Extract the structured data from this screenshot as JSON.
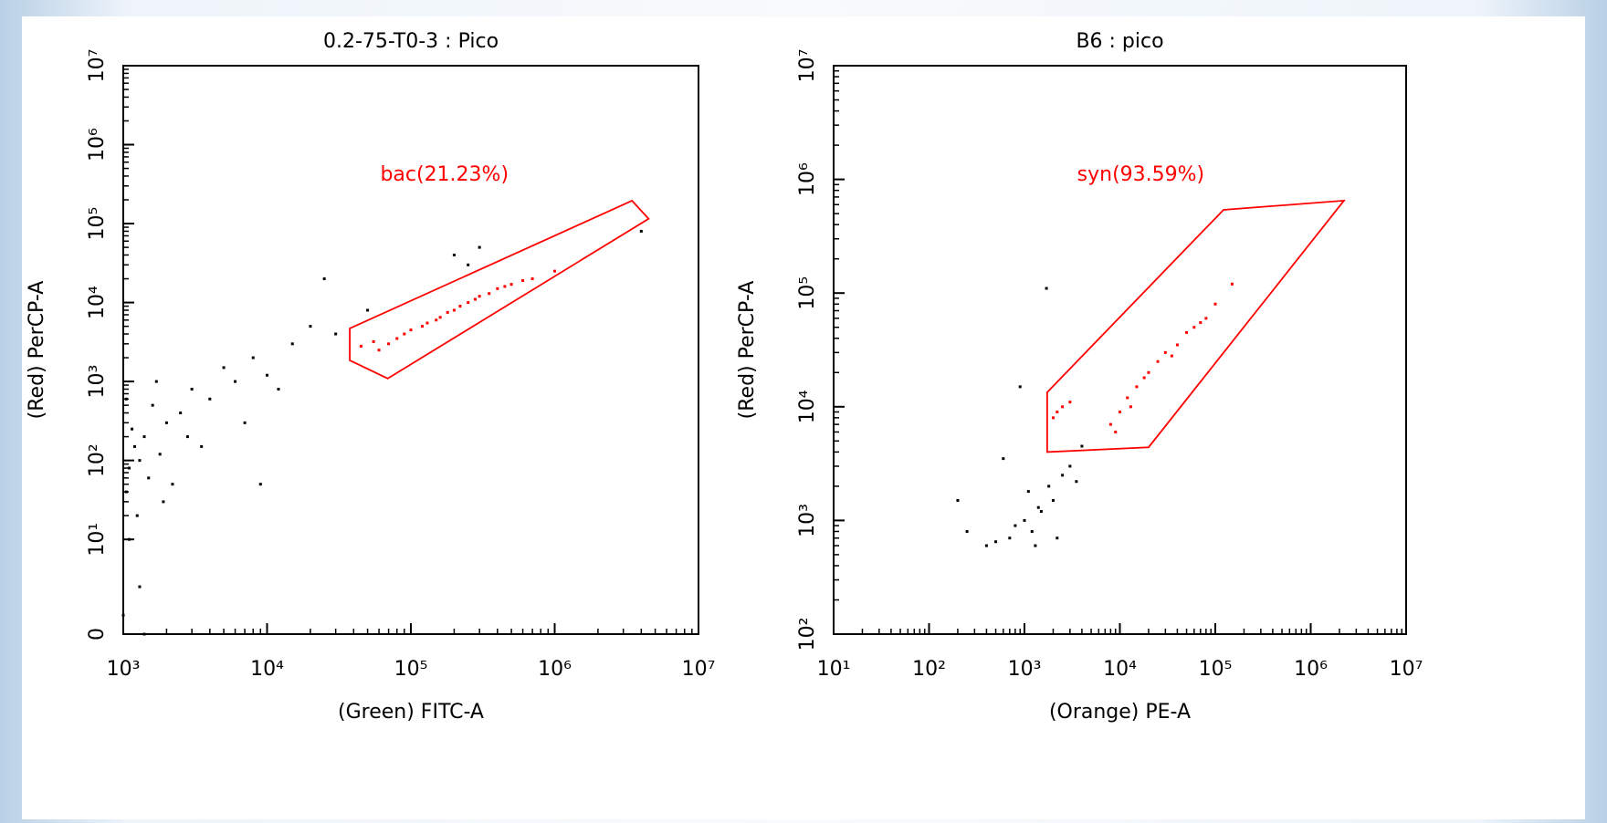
{
  "chart_data": [
    {
      "type": "scatter",
      "title": "0.2-75-T0-3 : Pico",
      "x_label": "(Green)  FITC-A",
      "y_label": "(Red)  PerCP-A",
      "xscale": "log",
      "yscale": "logicle",
      "xlim": [
        1000,
        10000000
      ],
      "ylim": [
        0,
        10000000
      ],
      "xticks": [
        {
          "value": 1000,
          "label": "10³"
        },
        {
          "value": 10000,
          "label": "10⁴"
        },
        {
          "value": 100000,
          "label": "10⁵"
        },
        {
          "value": 1000000,
          "label": "10⁶"
        },
        {
          "value": 10000000,
          "label": "10⁷"
        }
      ],
      "yticks": [
        0,
        {
          "value": 10,
          "label": "10¹"
        },
        {
          "value": 100,
          "label": "10²"
        },
        {
          "value": 1000,
          "label": "10³"
        },
        {
          "value": 10000,
          "label": "10⁴"
        },
        {
          "value": 100000,
          "label": "10⁵"
        },
        {
          "value": 1000000,
          "label": "10⁶"
        },
        {
          "value": 10000000,
          "label": "10⁷"
        }
      ],
      "series": [
        {
          "color": "#000000",
          "x": [
            1100,
            1200,
            1050,
            1300,
            1500,
            1150,
            1400,
            1800,
            2000,
            1250,
            1600,
            2500,
            3000,
            4000,
            5000,
            6000,
            8000,
            10000,
            15000,
            20000,
            30000,
            50000,
            2200,
            3500,
            1700,
            1100,
            1300,
            2800,
            7000,
            12000,
            250000,
            300000,
            200000,
            1000,
            1400,
            9000,
            4000000,
            25000,
            1900,
            1050
          ],
          "y": [
            80,
            150,
            40,
            100,
            60,
            250,
            200,
            120,
            300,
            20,
            500,
            400,
            800,
            600,
            1500,
            1000,
            2000,
            1200,
            3000,
            5000,
            4000,
            8000,
            50,
            150,
            1000,
            10,
            5,
            200,
            300,
            800,
            30000,
            50000,
            40000,
            2,
            0,
            50,
            80000,
            20000,
            30,
            600
          ]
        },
        {
          "color": "#ff0000",
          "x": [
            45000,
            55000,
            60000,
            80000,
            100000,
            120000,
            150000,
            180000,
            200000,
            250000,
            300000,
            350000,
            400000,
            500000,
            600000,
            700000,
            90000,
            130000,
            220000,
            280000,
            450000,
            1000000,
            70000,
            160000
          ],
          "y": [
            2800,
            3200,
            2500,
            3500,
            4500,
            5000,
            6000,
            7500,
            8000,
            10000,
            12000,
            13000,
            15000,
            17000,
            19000,
            20000,
            4000,
            5500,
            9000,
            11000,
            16000,
            25000,
            3000,
            6500
          ]
        }
      ],
      "gate": {
        "label": "bac(21.23%)",
        "color": "#ff0000",
        "x": [
          37600,
          37600,
          69000,
          4500000,
          3450000
        ],
        "y": [
          4700,
          1850,
          1090,
          115000,
          195000
        ]
      }
    },
    {
      "type": "scatter",
      "title": "B6 : pico",
      "x_label": "(Orange)  PE-A",
      "y_label": "(Red)  PerCP-A",
      "xscale": "log",
      "yscale": "log",
      "xlim": [
        10,
        10000000
      ],
      "ylim": [
        100,
        10000000
      ],
      "xticks": [
        {
          "value": 10,
          "label": "10¹"
        },
        {
          "value": 100,
          "label": "10²"
        },
        {
          "value": 1000,
          "label": "10³"
        },
        {
          "value": 10000,
          "label": "10⁴"
        },
        {
          "value": 100000,
          "label": "10⁵"
        },
        {
          "value": 1000000,
          "label": "10⁶"
        },
        {
          "value": 10000000,
          "label": "10⁷"
        }
      ],
      "yticks": [
        {
          "value": 100,
          "label": "10²"
        },
        {
          "value": 1000,
          "label": "10³"
        },
        {
          "value": 10000,
          "label": "10⁴"
        },
        {
          "value": 100000,
          "label": "10⁵"
        },
        {
          "value": 1000000,
          "label": "10⁶"
        },
        {
          "value": 10000000,
          "label": "10⁷"
        }
      ],
      "series": [
        {
          "color": "#000000",
          "x": [
            200,
            250,
            400,
            500,
            700,
            800,
            1000,
            1200,
            1500,
            1800,
            2000,
            2500,
            3000,
            3500,
            1100,
            1300,
            600,
            900,
            1700,
            4000,
            2200,
            1400
          ],
          "y": [
            1500,
            800,
            600,
            650,
            700,
            900,
            1000,
            800,
            1200,
            2000,
            1500,
            2500,
            3000,
            2200,
            1800,
            600,
            3500,
            15000,
            110000,
            4500,
            700,
            1300
          ]
        },
        {
          "color": "#ff0000",
          "x": [
            2000,
            2500,
            3000,
            2200,
            8000,
            10000,
            12000,
            15000,
            20000,
            25000,
            30000,
            40000,
            50000,
            60000,
            80000,
            100000,
            9000,
            13000,
            18000,
            35000,
            70000,
            150000
          ],
          "y": [
            8000,
            10000,
            11000,
            9000,
            7000,
            9000,
            12000,
            15000,
            20000,
            25000,
            30000,
            35000,
            45000,
            50000,
            60000,
            80000,
            6000,
            10000,
            18000,
            28000,
            55000,
            120000
          ]
        }
      ],
      "gate": {
        "label": "syn(93.59%)",
        "color": "#ff0000",
        "x": [
          1730,
          122000,
          2230000,
          20000,
          1730
        ],
        "y": [
          13400,
          540000,
          650000,
          4400,
          4000
        ]
      }
    }
  ]
}
